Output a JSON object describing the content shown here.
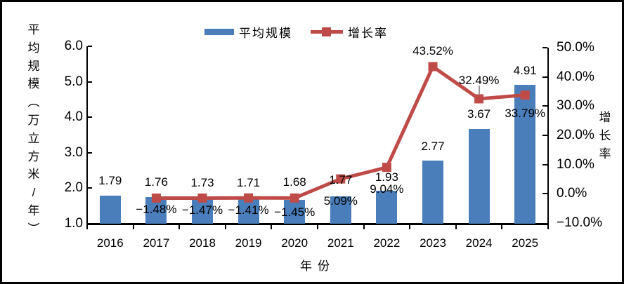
{
  "page": {
    "background": "#ffffff",
    "border_color": "#000000"
  },
  "chart_data": {
    "type": "bar",
    "subtype": "bar+line combo, dual axis",
    "categories": [
      "2016",
      "2017",
      "2018",
      "2019",
      "2020",
      "2021",
      "2022",
      "2023",
      "2024",
      "2025"
    ],
    "series": [
      {
        "name": "平均规模",
        "type": "bar",
        "color": "#4a7ebb",
        "axis": "left",
        "values": [
          1.79,
          1.76,
          1.73,
          1.71,
          1.68,
          1.77,
          1.93,
          2.77,
          3.67,
          4.91
        ],
        "labels": [
          "1.79",
          "1.76",
          "1.73",
          "1.71",
          "1.68",
          "1.77",
          "1.93",
          "2.77",
          "3.67",
          "4.91"
        ]
      },
      {
        "name": "增长率",
        "type": "line",
        "color": "#be4b48",
        "marker": "square",
        "axis": "right",
        "values": [
          null,
          -1.48,
          -1.47,
          -1.41,
          -1.45,
          5.09,
          9.04,
          43.52,
          32.49,
          33.79
        ],
        "labels": [
          "",
          "−1.48%",
          "−1.47%",
          "−1.41%",
          "−1.45%",
          "5.09%",
          "9.04%",
          "43.52%",
          "32.49%",
          "33.79%"
        ]
      }
    ],
    "left_axis": {
      "title": "平均规模（万立方米/年）",
      "min": 1.0,
      "max": 6.0,
      "tick_labels": [
        "6.0",
        "5.0",
        "4.0",
        "3.0",
        "2.0",
        "1.0"
      ]
    },
    "right_axis": {
      "title": "增长率",
      "min": -10.0,
      "max": 50.0,
      "tick_labels": [
        "50.0%",
        "40.0%",
        "30.0%",
        "20.0%",
        "10.0%",
        "0.0%",
        "−10.0%"
      ]
    },
    "xlabel": "年份",
    "legend": {
      "position": "top-center",
      "items": [
        "平均规模",
        "增长率"
      ]
    },
    "grid": false,
    "layout_hints": {
      "bar_label_dy": [
        -21,
        -21,
        -21,
        -22,
        -25,
        -23,
        -19,
        -20,
        -21,
        -20
      ],
      "growth_label_dy": [
        0,
        16,
        18,
        18,
        21,
        32,
        31,
        -22,
        -26,
        26
      ],
      "leader_line_category": "2024",
      "line_starts_at": "2017"
    }
  }
}
